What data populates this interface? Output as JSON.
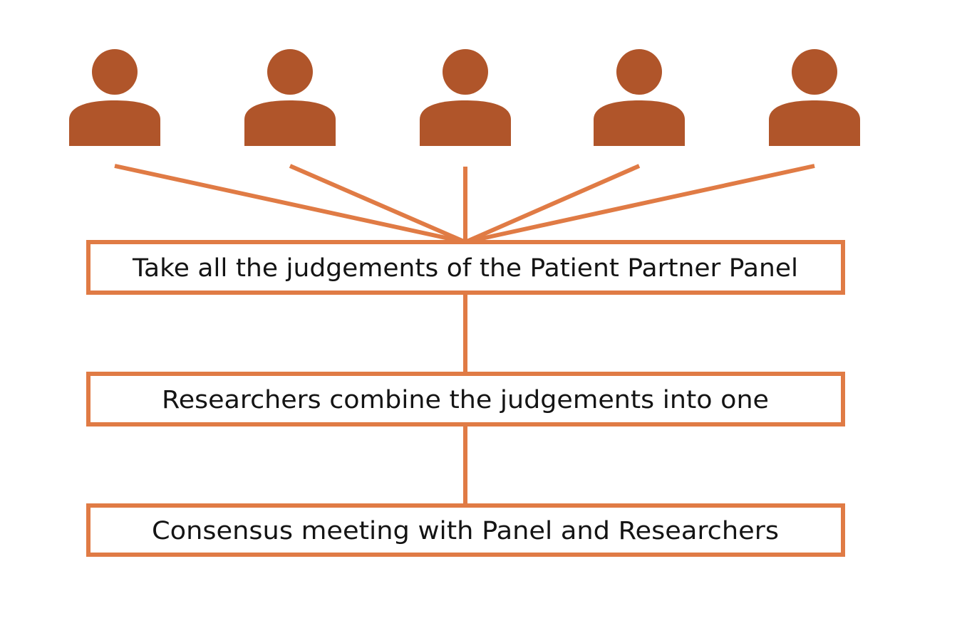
{
  "colors": {
    "person_icon": "#b0552a",
    "connector_and_border": "#e07b45",
    "text": "#141414",
    "background": "#ffffff"
  },
  "panel": {
    "member_count": 5,
    "icon": "person-icon"
  },
  "steps": [
    {
      "label": "Take all the judgements of the Patient Partner Panel"
    },
    {
      "label": "Researchers combine the judgements into one"
    },
    {
      "label": "Consensus meeting with Panel and Researchers"
    }
  ]
}
